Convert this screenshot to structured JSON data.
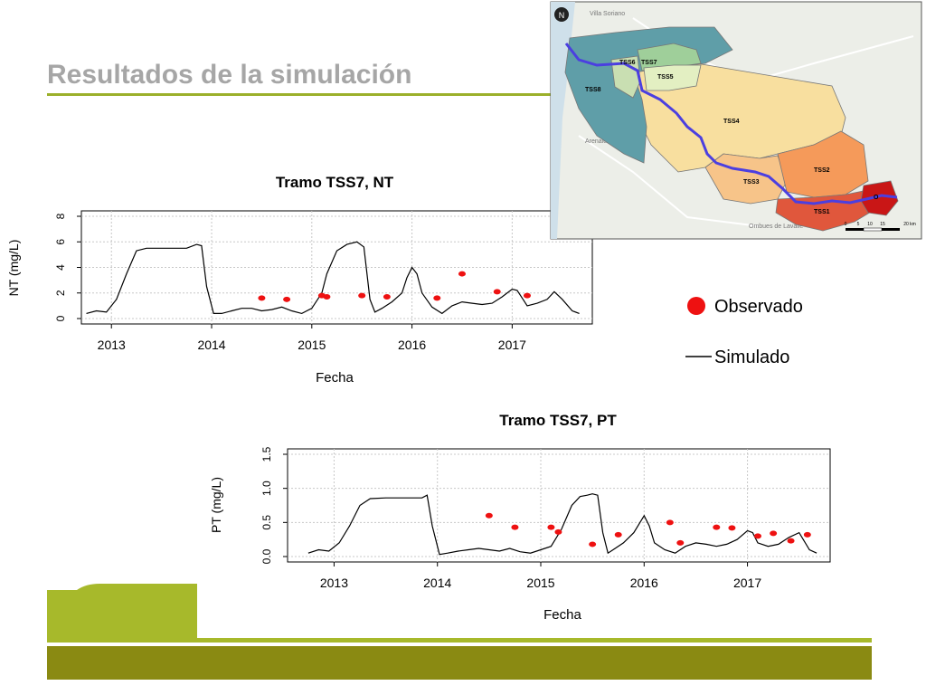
{
  "slide": {
    "title": "Resultados de la simulación"
  },
  "legend": {
    "observed": "Observado",
    "simulated": "Simulado"
  },
  "colors": {
    "accent": "#9bb02a",
    "dark_band": "#8a8a12",
    "observed": "#ee1111",
    "simulated": "#000000"
  },
  "map": {
    "north_label": "N",
    "places": [
      "Villa Soriano",
      "Arenales",
      "Ombues de Lavalle"
    ],
    "subbasins": [
      {
        "label": "TSS8",
        "color": "#5f9ea8"
      },
      {
        "label": "TSS6",
        "color": "#c9dfb2"
      },
      {
        "label": "TSS7",
        "color": "#9fcf9a"
      },
      {
        "label": "TSS5",
        "color": "#e3efc2"
      },
      {
        "label": "TSS4",
        "color": "#f8df9f"
      },
      {
        "label": "TSS3",
        "color": "#f7c489"
      },
      {
        "label": "TSS2",
        "color": "#f59a5a"
      },
      {
        "label": "TSS1",
        "color": "#e0573c"
      },
      {
        "label": "O",
        "color": "#c91616"
      }
    ],
    "scale_labels": [
      "0",
      "5",
      "10",
      "15",
      "20 km"
    ]
  },
  "chart_data": [
    {
      "type": "line",
      "title": "Tramo TSS7, NT",
      "xlabel": "Fecha",
      "ylabel": "NT (mg/L)",
      "xlim": [
        2012.7,
        2017.8
      ],
      "ylim": [
        0,
        8
      ],
      "xticks": [
        2013,
        2014,
        2015,
        2016,
        2017
      ],
      "xtick_labels": [
        "2013",
        "2014",
        "2015",
        "2016",
        "2017"
      ],
      "yticks": [
        0,
        2,
        4,
        6,
        8
      ],
      "ytick_labels": [
        "0",
        "2",
        "4",
        "6",
        "8"
      ],
      "grid": true,
      "series": [
        {
          "name": "Simulado",
          "kind": "line",
          "x": [
            2012.75,
            2012.85,
            2012.95,
            2013.05,
            2013.15,
            2013.25,
            2013.35,
            2013.5,
            2013.65,
            2013.75,
            2013.85,
            2013.9,
            2013.95,
            2014.02,
            2014.1,
            2014.2,
            2014.3,
            2014.4,
            2014.5,
            2014.6,
            2014.7,
            2014.8,
            2014.9,
            2015.0,
            2015.1,
            2015.15,
            2015.25,
            2015.35,
            2015.45,
            2015.52,
            2015.58,
            2015.63,
            2015.7,
            2015.8,
            2015.9,
            2015.95,
            2016.0,
            2016.05,
            2016.1,
            2016.2,
            2016.3,
            2016.4,
            2016.5,
            2016.6,
            2016.7,
            2016.8,
            2016.9,
            2017.0,
            2017.05,
            2017.1,
            2017.15,
            2017.25,
            2017.35,
            2017.42,
            2017.5,
            2017.6,
            2017.67
          ],
          "y": [
            0.4,
            0.6,
            0.5,
            1.5,
            3.5,
            5.3,
            5.5,
            5.5,
            5.5,
            5.5,
            5.8,
            5.7,
            2.5,
            0.4,
            0.4,
            0.6,
            0.8,
            0.8,
            0.6,
            0.7,
            0.9,
            0.6,
            0.4,
            0.8,
            2.0,
            3.5,
            5.3,
            5.8,
            6.0,
            5.6,
            1.5,
            0.5,
            0.8,
            1.3,
            2.0,
            3.2,
            4.0,
            3.5,
            2.0,
            0.9,
            0.4,
            1.0,
            1.3,
            1.2,
            1.1,
            1.2,
            1.7,
            2.3,
            2.2,
            1.6,
            1.0,
            1.2,
            1.5,
            2.1,
            1.5,
            0.6,
            0.4
          ]
        },
        {
          "name": "Observado",
          "kind": "scatter",
          "x": [
            2014.5,
            2014.75,
            2015.1,
            2015.15,
            2015.5,
            2015.75,
            2016.25,
            2016.5,
            2016.85,
            2017.15
          ],
          "y": [
            1.6,
            1.5,
            1.8,
            1.7,
            1.8,
            1.7,
            1.6,
            3.5,
            2.1,
            1.8
          ]
        }
      ]
    },
    {
      "type": "line",
      "title": "Tramo TSS7, PT",
      "xlabel": "Fecha",
      "ylabel": "PT (mg/L)",
      "xlim": [
        2012.55,
        2017.8
      ],
      "ylim": [
        0,
        1.5
      ],
      "xticks": [
        2013,
        2014,
        2015,
        2016,
        2017
      ],
      "xtick_labels": [
        "2013",
        "2014",
        "2015",
        "2016",
        "2017"
      ],
      "yticks": [
        0,
        0.5,
        1.0,
        1.5
      ],
      "ytick_labels": [
        "0.0",
        "0.5",
        "1.0",
        "1.5"
      ],
      "grid": true,
      "series": [
        {
          "name": "Simulado",
          "kind": "line",
          "x": [
            2012.75,
            2012.85,
            2012.95,
            2013.05,
            2013.15,
            2013.25,
            2013.35,
            2013.5,
            2013.65,
            2013.75,
            2013.85,
            2013.9,
            2013.95,
            2014.02,
            2014.1,
            2014.2,
            2014.3,
            2014.4,
            2014.5,
            2014.6,
            2014.7,
            2014.8,
            2014.9,
            2015.0,
            2015.1,
            2015.2,
            2015.3,
            2015.38,
            2015.45,
            2015.5,
            2015.55,
            2015.6,
            2015.65,
            2015.7,
            2015.8,
            2015.9,
            2016.0,
            2016.05,
            2016.1,
            2016.2,
            2016.3,
            2016.4,
            2016.5,
            2016.6,
            2016.7,
            2016.8,
            2016.9,
            2017.0,
            2017.05,
            2017.1,
            2017.2,
            2017.3,
            2017.4,
            2017.5,
            2017.6,
            2017.67
          ],
          "y": [
            0.05,
            0.1,
            0.08,
            0.2,
            0.45,
            0.75,
            0.85,
            0.86,
            0.86,
            0.86,
            0.86,
            0.9,
            0.45,
            0.03,
            0.05,
            0.08,
            0.1,
            0.12,
            0.1,
            0.08,
            0.12,
            0.07,
            0.05,
            0.1,
            0.15,
            0.4,
            0.75,
            0.88,
            0.9,
            0.92,
            0.9,
            0.35,
            0.05,
            0.1,
            0.2,
            0.35,
            0.6,
            0.45,
            0.2,
            0.1,
            0.05,
            0.15,
            0.2,
            0.18,
            0.15,
            0.18,
            0.25,
            0.38,
            0.35,
            0.2,
            0.15,
            0.18,
            0.28,
            0.35,
            0.1,
            0.05
          ]
        },
        {
          "name": "Observado",
          "kind": "scatter",
          "x": [
            2014.5,
            2014.75,
            2015.1,
            2015.17,
            2015.5,
            2015.75,
            2016.25,
            2016.35,
            2016.7,
            2016.85,
            2017.1,
            2017.25,
            2017.42,
            2017.58
          ],
          "y": [
            0.6,
            0.43,
            0.43,
            0.36,
            0.18,
            0.32,
            0.5,
            0.2,
            0.43,
            0.42,
            0.3,
            0.34,
            0.23,
            0.32
          ]
        }
      ]
    }
  ]
}
